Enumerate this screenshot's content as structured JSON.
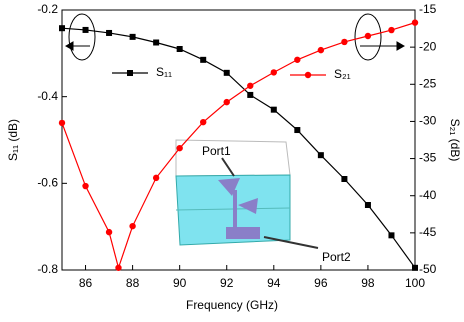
{
  "chart_data": {
    "type": "line",
    "xlabel": "Frequency (GHz)",
    "ylabel": "S₁₁ (dB)",
    "y2label": "S₂₁ (dB)",
    "xlim": [
      85,
      100
    ],
    "xticks": [
      86,
      88,
      90,
      92,
      94,
      96,
      98,
      100
    ],
    "ylim": [
      -0.8,
      -0.2
    ],
    "yticks": [
      -0.8,
      -0.6,
      -0.4,
      -0.2
    ],
    "y2lim": [
      -50,
      -15
    ],
    "y2ticks": [
      -50,
      -45,
      -40,
      -35,
      -30,
      -25,
      -20,
      -15
    ],
    "series": [
      {
        "name": "S₁₁",
        "color": "#000000",
        "marker": "square",
        "x": [
          85,
          86,
          87,
          88,
          89,
          90,
          91,
          92,
          93,
          94,
          95,
          96,
          97,
          98,
          99,
          100
        ],
        "values": [
          -0.242,
          -0.246,
          -0.253,
          -0.262,
          -0.275,
          -0.29,
          -0.315,
          -0.345,
          -0.396,
          -0.43,
          -0.477,
          -0.535,
          -0.59,
          -0.65,
          -0.72,
          -0.795
        ]
      },
      {
        "name": "S₂₁",
        "color": "#ff0000",
        "marker": "circle",
        "axis": "y2",
        "x": [
          85,
          86,
          87,
          87.4,
          88,
          89,
          90,
          91,
          92,
          93,
          94,
          95,
          96,
          97,
          98,
          99,
          100
        ],
        "values": [
          -30.2,
          -38.7,
          -44.9,
          -49.7,
          -44.1,
          -37.6,
          -33.6,
          -30.1,
          -27.4,
          -25.2,
          -23.4,
          -21.7,
          -20.4,
          -19.3,
          -18.5,
          -17.7,
          -16.7
        ]
      }
    ],
    "annotations": [
      "Port1",
      "Port2"
    ]
  }
}
